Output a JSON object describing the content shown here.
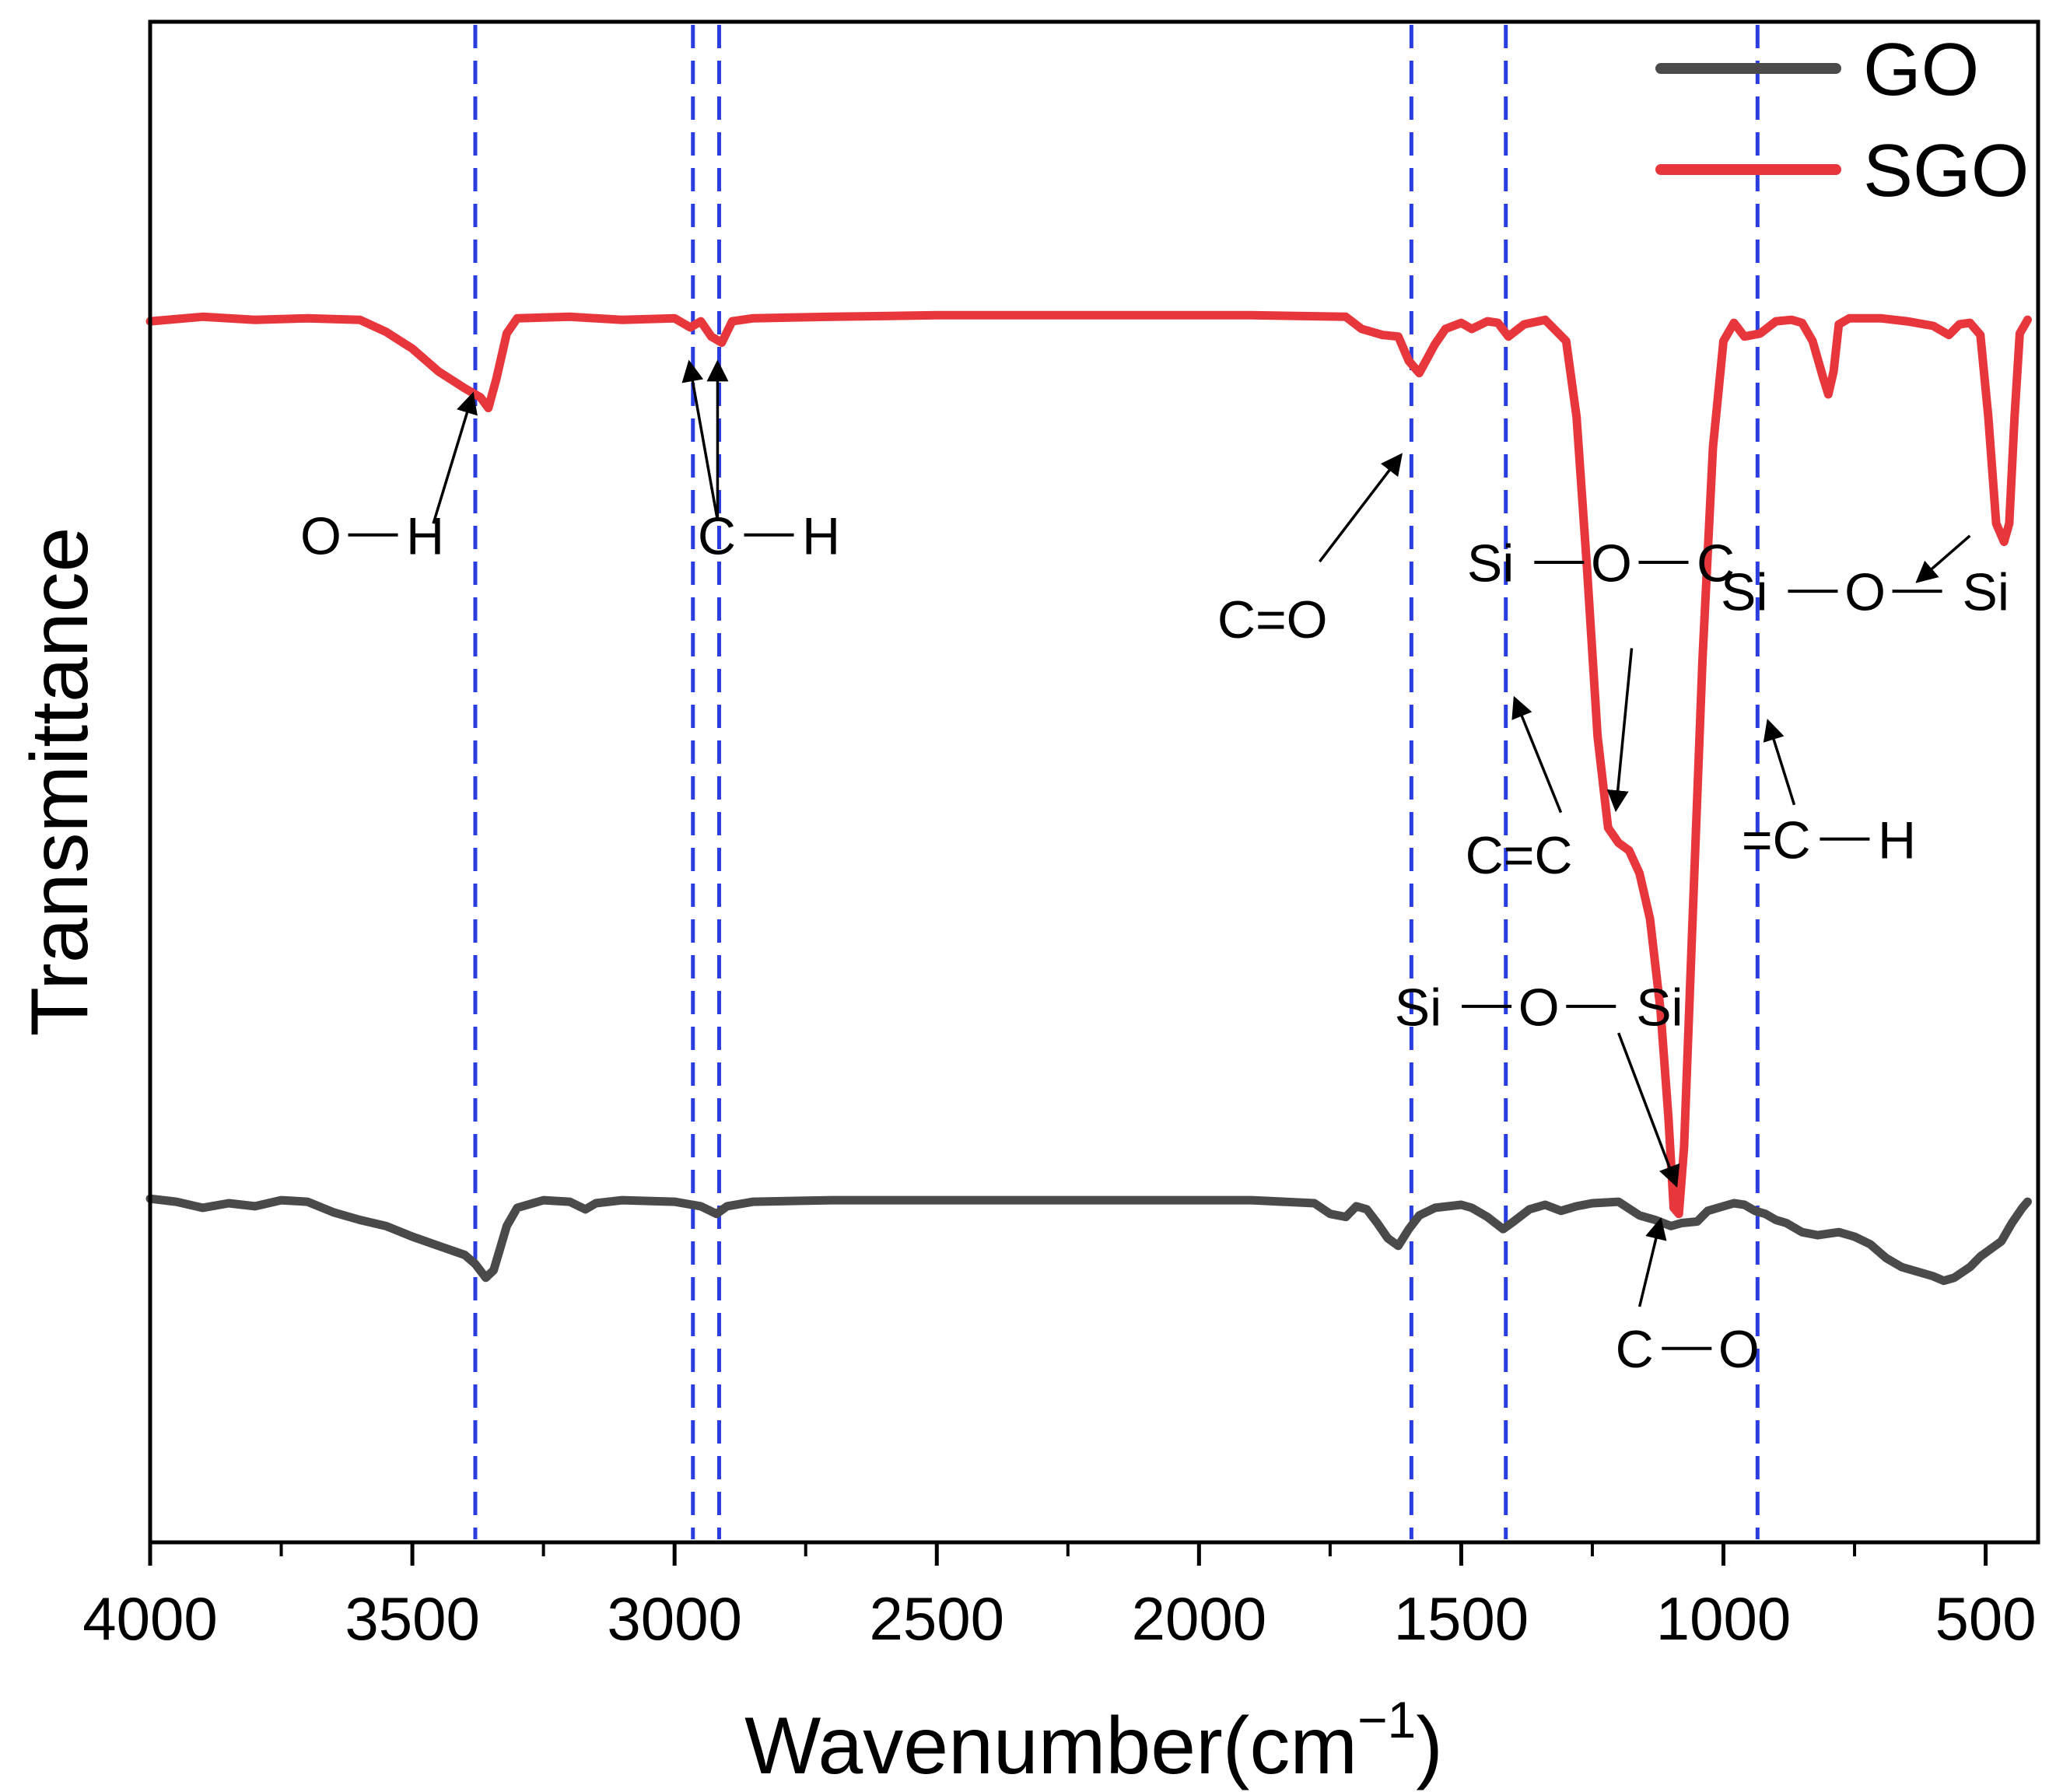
{
  "chart_data": {
    "type": "line",
    "title": "",
    "xlabel": "Wavenumber(cm",
    "xlabel_sup": "−1",
    "xlabel_close": ")",
    "ylabel": "Transmittance",
    "xlim": [
      4000,
      400
    ],
    "ylim": [
      0,
      100
    ],
    "x_reversed": true,
    "grid": false,
    "legend_position": "top-right",
    "x_ticks": [
      4000,
      3500,
      3000,
      2500,
      2000,
      1500,
      1000,
      500
    ],
    "x_tick_labels": [
      "4000",
      "3500",
      "3000",
      "2500",
      "2000",
      "1500",
      "1000",
      "500"
    ],
    "x_minor_ticks": [
      3750,
      3250,
      2750,
      2250,
      1750,
      1250,
      750
    ],
    "series": [
      {
        "name": "SGO",
        "color": "#e8373c",
        "points": [
          [
            4000,
            80.3
          ],
          [
            3900,
            80.6
          ],
          [
            3800,
            80.4
          ],
          [
            3700,
            80.5
          ],
          [
            3600,
            80.4
          ],
          [
            3550,
            79.6
          ],
          [
            3500,
            78.5
          ],
          [
            3450,
            77.0
          ],
          [
            3400,
            75.9
          ],
          [
            3370,
            75.3
          ],
          [
            3355,
            74.6
          ],
          [
            3340,
            76.5
          ],
          [
            3320,
            79.5
          ],
          [
            3300,
            80.5
          ],
          [
            3200,
            80.6
          ],
          [
            3100,
            80.4
          ],
          [
            3000,
            80.5
          ],
          [
            2970,
            79.9
          ],
          [
            2950,
            80.3
          ],
          [
            2930,
            79.3
          ],
          [
            2910,
            78.9
          ],
          [
            2890,
            80.3
          ],
          [
            2850,
            80.5
          ],
          [
            2700,
            80.6
          ],
          [
            2500,
            80.7
          ],
          [
            2200,
            80.7
          ],
          [
            1900,
            80.7
          ],
          [
            1720,
            80.6
          ],
          [
            1690,
            79.8
          ],
          [
            1650,
            79.4
          ],
          [
            1620,
            79.3
          ],
          [
            1600,
            77.7
          ],
          [
            1580,
            76.9
          ],
          [
            1550,
            78.8
          ],
          [
            1530,
            79.8
          ],
          [
            1500,
            80.2
          ],
          [
            1480,
            79.8
          ],
          [
            1450,
            80.3
          ],
          [
            1430,
            80.2
          ],
          [
            1410,
            79.3
          ],
          [
            1380,
            80.1
          ],
          [
            1340,
            80.4
          ],
          [
            1300,
            79.0
          ],
          [
            1280,
            74.0
          ],
          [
            1260,
            64.0
          ],
          [
            1240,
            53.0
          ],
          [
            1220,
            47.0
          ],
          [
            1200,
            46.0
          ],
          [
            1180,
            45.5
          ],
          [
            1160,
            44.0
          ],
          [
            1140,
            41.0
          ],
          [
            1120,
            35.0
          ],
          [
            1105,
            28.0
          ],
          [
            1095,
            22.0
          ],
          [
            1085,
            21.6
          ],
          [
            1075,
            26.0
          ],
          [
            1060,
            40.0
          ],
          [
            1040,
            58.0
          ],
          [
            1020,
            72.0
          ],
          [
            1000,
            79.0
          ],
          [
            980,
            80.2
          ],
          [
            960,
            79.3
          ],
          [
            930,
            79.5
          ],
          [
            900,
            80.3
          ],
          [
            870,
            80.4
          ],
          [
            850,
            80.2
          ],
          [
            830,
            79.0
          ],
          [
            810,
            76.6
          ],
          [
            800,
            75.5
          ],
          [
            790,
            77.0
          ],
          [
            780,
            80.1
          ],
          [
            760,
            80.5
          ],
          [
            700,
            80.5
          ],
          [
            650,
            80.3
          ],
          [
            600,
            80.0
          ],
          [
            570,
            79.4
          ],
          [
            550,
            80.1
          ],
          [
            530,
            80.2
          ],
          [
            510,
            79.4
          ],
          [
            495,
            74.0
          ],
          [
            480,
            67.0
          ],
          [
            465,
            65.8
          ],
          [
            455,
            67.0
          ],
          [
            445,
            74.0
          ],
          [
            435,
            79.5
          ],
          [
            420,
            80.4
          ]
        ]
      },
      {
        "name": "GO",
        "color": "#4a4a4a",
        "points": [
          [
            4000,
            22.6
          ],
          [
            3950,
            22.4
          ],
          [
            3900,
            22.0
          ],
          [
            3850,
            22.3
          ],
          [
            3800,
            22.1
          ],
          [
            3750,
            22.5
          ],
          [
            3700,
            22.4
          ],
          [
            3650,
            21.7
          ],
          [
            3600,
            21.2
          ],
          [
            3550,
            20.8
          ],
          [
            3500,
            20.1
          ],
          [
            3450,
            19.5
          ],
          [
            3400,
            18.9
          ],
          [
            3380,
            18.3
          ],
          [
            3360,
            17.4
          ],
          [
            3345,
            17.9
          ],
          [
            3320,
            20.8
          ],
          [
            3300,
            22.0
          ],
          [
            3250,
            22.5
          ],
          [
            3200,
            22.4
          ],
          [
            3170,
            21.9
          ],
          [
            3150,
            22.3
          ],
          [
            3100,
            22.5
          ],
          [
            3000,
            22.4
          ],
          [
            2950,
            22.1
          ],
          [
            2920,
            21.6
          ],
          [
            2900,
            22.1
          ],
          [
            2850,
            22.4
          ],
          [
            2700,
            22.5
          ],
          [
            2500,
            22.5
          ],
          [
            2200,
            22.5
          ],
          [
            1900,
            22.5
          ],
          [
            1780,
            22.3
          ],
          [
            1750,
            21.6
          ],
          [
            1720,
            21.4
          ],
          [
            1700,
            22.1
          ],
          [
            1680,
            21.9
          ],
          [
            1660,
            21.0
          ],
          [
            1640,
            20.0
          ],
          [
            1620,
            19.5
          ],
          [
            1600,
            20.6
          ],
          [
            1580,
            21.5
          ],
          [
            1550,
            22.0
          ],
          [
            1500,
            22.2
          ],
          [
            1480,
            22.0
          ],
          [
            1450,
            21.4
          ],
          [
            1420,
            20.6
          ],
          [
            1400,
            21.1
          ],
          [
            1370,
            21.9
          ],
          [
            1340,
            22.2
          ],
          [
            1310,
            21.8
          ],
          [
            1280,
            22.1
          ],
          [
            1250,
            22.3
          ],
          [
            1200,
            22.4
          ],
          [
            1160,
            21.5
          ],
          [
            1130,
            21.2
          ],
          [
            1100,
            20.8
          ],
          [
            1080,
            21.0
          ],
          [
            1050,
            21.1
          ],
          [
            1030,
            21.8
          ],
          [
            1000,
            22.1
          ],
          [
            980,
            22.3
          ],
          [
            960,
            22.2
          ],
          [
            940,
            21.8
          ],
          [
            920,
            21.6
          ],
          [
            900,
            21.2
          ],
          [
            880,
            21.0
          ],
          [
            850,
            20.4
          ],
          [
            820,
            20.2
          ],
          [
            780,
            20.4
          ],
          [
            750,
            20.1
          ],
          [
            720,
            19.6
          ],
          [
            690,
            18.7
          ],
          [
            660,
            18.1
          ],
          [
            630,
            17.8
          ],
          [
            600,
            17.5
          ],
          [
            580,
            17.2
          ],
          [
            560,
            17.4
          ],
          [
            530,
            18.1
          ],
          [
            510,
            18.8
          ],
          [
            490,
            19.3
          ],
          [
            470,
            19.8
          ],
          [
            450,
            21.0
          ],
          [
            430,
            22.0
          ],
          [
            420,
            22.4
          ]
        ]
      }
    ],
    "reference_lines": {
      "color": "#2a3ee0",
      "x": [
        3380,
        2965,
        2915,
        1595,
        1415,
        935
      ]
    },
    "annotations": [
      {
        "text": "O",
        "text2": "H",
        "bond": "single",
        "tx": 3575,
        "ty": 65,
        "arrow": [
          3460,
          67,
          3385,
          75.5
        ]
      },
      {
        "text": "C",
        "text2": "H",
        "bond": "single",
        "tx": 2820,
        "ty": 65,
        "arrow_list": [
          [
            2918,
            67.2,
            2972,
            77.6
          ],
          [
            2918,
            67.2,
            2918,
            77.6
          ]
        ]
      },
      {
        "text": "C=O",
        "bond": "none",
        "tx": 1860,
        "ty": 59.5,
        "arrow": [
          1770,
          64.5,
          1615,
          71.5
        ]
      },
      {
        "text": "Si",
        "text2": "O",
        "text3": "C",
        "bond": "chain",
        "tx": 1245,
        "ty": 63.2,
        "arrow": [
          1175,
          58.8,
          1205,
          48.2
        ]
      },
      {
        "text": "C=C",
        "bond": "none",
        "tx": 1390,
        "ty": 44.0,
        "arrow": [
          1310,
          48,
          1398,
          55.5
        ]
      },
      {
        "text": "Si",
        "text2": "O",
        "text3": "Si",
        "bond": "chain",
        "tx": 730,
        "ty": 61.3,
        "arrow": [
          530,
          66.2,
          630,
          63.2
        ]
      },
      {
        "text": "=C",
        "text2": "H",
        "bond": "single",
        "tx": 800,
        "ty": 45.0,
        "arrow": [
          865,
          48.5,
          915,
          54.0
        ]
      },
      {
        "text": "Si",
        "text2": "O",
        "text3": "Si",
        "bond": "chain",
        "tx": 1352,
        "ty": 34.0,
        "arrow": [
          1200,
          33.5,
          1090,
          23.5
        ]
      },
      {
        "text": "C",
        "text2": "O",
        "bond": "single",
        "tx": 1070,
        "ty": 11.5,
        "arrow": [
          1160,
          15.5,
          1120,
          21.2
        ]
      }
    ]
  },
  "legend": {
    "items": [
      {
        "label": "GO",
        "color": "#4a4a4a"
      },
      {
        "label": "SGO",
        "color": "#e8373c"
      }
    ]
  }
}
